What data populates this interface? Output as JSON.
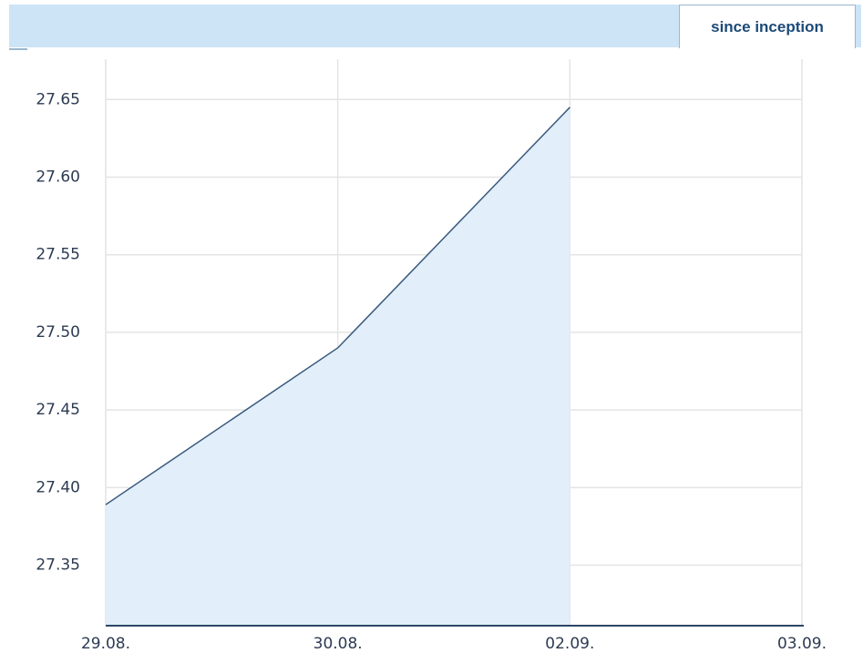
{
  "tab": {
    "label": "since inception"
  },
  "chart_data": {
    "type": "area",
    "categories": [
      "29.08.",
      "30.08.",
      "02.09.",
      "03.09."
    ],
    "series": [
      {
        "color": "#3a5a7e",
        "fill": "#e2eef9",
        "values": [
          27.389,
          27.49,
          27.645,
          null
        ]
      }
    ],
    "ylim": [
      27.311,
      27.676
    ],
    "yticks": [
      {
        "value": 27.35,
        "label": "27.35"
      },
      {
        "value": 27.4,
        "label": "27.40"
      },
      {
        "value": 27.45,
        "label": "27.45"
      },
      {
        "value": 27.5,
        "label": "27.50"
      },
      {
        "value": 27.55,
        "label": "27.55"
      },
      {
        "value": 27.6,
        "label": "27.60"
      },
      {
        "value": 27.65,
        "label": "27.65"
      }
    ],
    "grid": true
  }
}
